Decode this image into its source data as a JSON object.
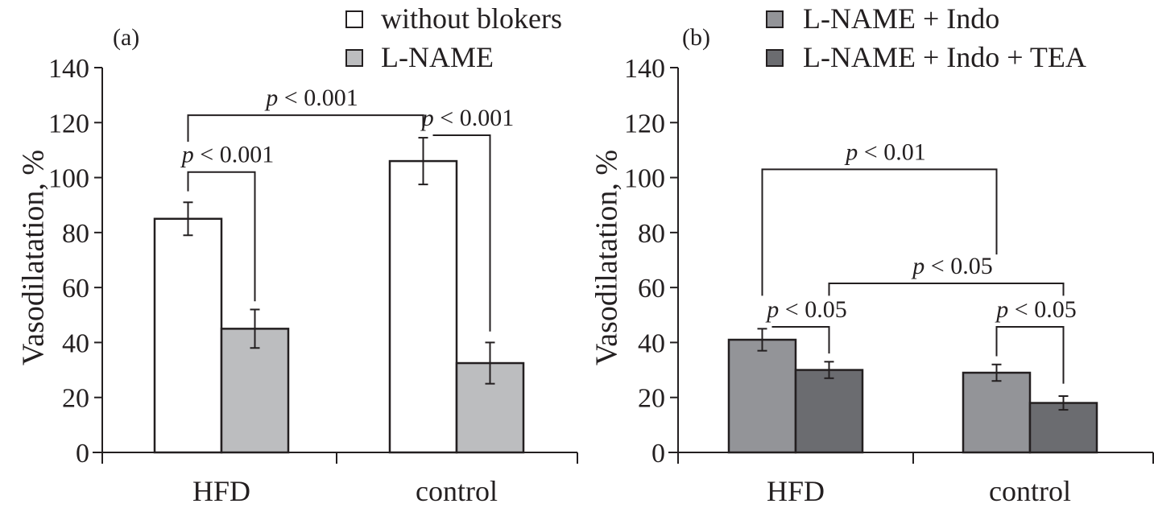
{
  "chart_data": [
    {
      "type": "bar",
      "panel_label": "(a)",
      "ylabel": "Vasodilatation, %",
      "ylim": [
        0,
        140
      ],
      "yticks": [
        0,
        20,
        40,
        60,
        80,
        100,
        120,
        140
      ],
      "categories": [
        "HFD",
        "control"
      ],
      "series": [
        {
          "name": "without blokers",
          "color": "#ffffff",
          "values": [
            85,
            106
          ],
          "errors": [
            6,
            8.5
          ]
        },
        {
          "name": "L-NAME",
          "color": "#bcbdbf",
          "values": [
            45,
            32.5
          ],
          "errors": [
            7,
            7.5
          ]
        }
      ],
      "legend": "top-center",
      "grid": false,
      "annotations": [
        {
          "text": "p < 0.001",
          "from": [
            0,
            0
          ],
          "to": [
            1,
            0
          ],
          "y": 122.7,
          "y_from": 113,
          "y_to": 118
        },
        {
          "text": "p < 0.001",
          "from": [
            0,
            0
          ],
          "to": [
            0,
            1
          ],
          "y": 102,
          "y_from": 95,
          "y_to": 55
        },
        {
          "text": "p < 0.001",
          "from": [
            1,
            0
          ],
          "to": [
            1,
            1
          ],
          "y": 115.4,
          "y_from": 115.4,
          "y_to": 44
        }
      ]
    },
    {
      "type": "bar",
      "panel_label": "(b)",
      "ylabel": "Vasodilatation, %",
      "ylim": [
        0,
        140
      ],
      "yticks": [
        0,
        20,
        40,
        60,
        80,
        100,
        120,
        140
      ],
      "categories": [
        "HFD",
        "control"
      ],
      "series": [
        {
          "name": "L-NAME + Indo",
          "color": "#939498",
          "values": [
            41,
            29
          ],
          "errors": [
            4,
            3
          ]
        },
        {
          "name": "L-NAME + Indo + TEA",
          "color": "#6b6c70",
          "values": [
            30,
            18
          ],
          "errors": [
            3,
            2.5
          ]
        }
      ],
      "legend": "top-right",
      "grid": false,
      "annotations": [
        {
          "text": "p < 0.01",
          "from": [
            0,
            0
          ],
          "to": [
            1,
            0
          ],
          "y": 103,
          "y_from": 57,
          "y_to": 72
        },
        {
          "text": "p < 0.05",
          "from": [
            0,
            1
          ],
          "to": [
            1,
            1
          ],
          "y": 61.5,
          "y_from": 57,
          "y_to": 57
        },
        {
          "text": "p < 0.05",
          "from": [
            0,
            0
          ],
          "to": [
            0,
            1
          ],
          "y": 45.7,
          "y_from": 45.7,
          "y_to": 36
        },
        {
          "text": "p < 0.05",
          "from": [
            1,
            0
          ],
          "to": [
            1,
            1
          ],
          "y": 45.7,
          "y_from": 35,
          "y_to": 25
        }
      ]
    }
  ]
}
